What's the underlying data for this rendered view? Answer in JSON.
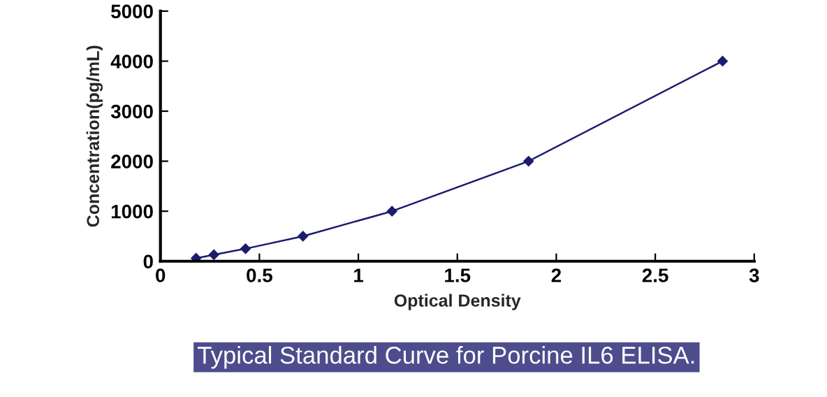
{
  "chart_data": {
    "type": "line",
    "xlabel": "Optical Density",
    "ylabel": "Concentration(pg/mL)",
    "xlim": [
      0,
      3
    ],
    "xticks": [
      0,
      0.5,
      1,
      1.5,
      2,
      2.5,
      3
    ],
    "ylim": [
      0,
      5000
    ],
    "yticks": [
      0,
      1000,
      2000,
      3000,
      4000,
      5000
    ],
    "grid": false,
    "marker": "diamond",
    "series": [
      {
        "color": "#1c1c6e",
        "x": [
          0.18,
          0.27,
          0.43,
          0.72,
          1.17,
          1.86,
          2.84
        ],
        "values": [
          60,
          130,
          250,
          500,
          1000,
          2000,
          4000
        ]
      }
    ],
    "annotations": [
      "Typical Standard Curve for Porcine IL6 ELISA."
    ]
  }
}
